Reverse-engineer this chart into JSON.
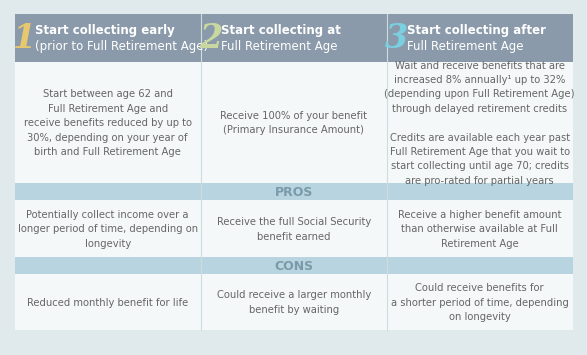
{
  "header_bg": "#8a9aaa",
  "pros_cons_bg": "#b8d4e0",
  "white_bg": "#f5f8f8",
  "outer_bg": "#e0eaec",
  "number_color_1": "#e8c86e",
  "number_color_2": "#c8d8a0",
  "number_color_3": "#7acfe0",
  "header_text_color": "#ffffff",
  "body_text_color": "#666666",
  "pros_cons_text_color": "#7a9aaa",
  "divider_color": "#ccdddd",
  "col_titles": [
    [
      "Start collecting early",
      "(prior to Full Retirement Age)"
    ],
    [
      "Start collecting at",
      "Full Retirement Age"
    ],
    [
      "Start collecting after",
      "Full Retirement Age"
    ]
  ],
  "col_numbers": [
    "1",
    "2",
    "3"
  ],
  "description_texts": [
    "Start between age 62 and\nFull Retirement Age and\nreceive benefits reduced by up to\n30%, depending on your year of\nbirth and Full Retirement Age",
    "Receive 100% of your benefit\n(Primary Insurance Amount)",
    "Wait and receive benefits that are\nincreased 8% annually¹ up to 32%\n(depending upon Full Retirement Age)\nthrough delayed retirement credits\n\nCredits are available each year past\nFull Retirement Age that you wait to\nstart collecting until age 70; credits\nare pro-rated for partial years"
  ],
  "pros_texts": [
    "Potentially collect income over a\nlonger period of time, depending on\nlongevity",
    "Receive the full Social Security\nbenefit earned",
    "Receive a higher benefit amount\nthan otherwise available at Full\nRetirement Age"
  ],
  "cons_texts": [
    "Reduced monthly benefit for life",
    "Could receive a larger monthly\nbenefit by waiting",
    "Could receive benefits for\na shorter period of time, depending\non longevity"
  ]
}
